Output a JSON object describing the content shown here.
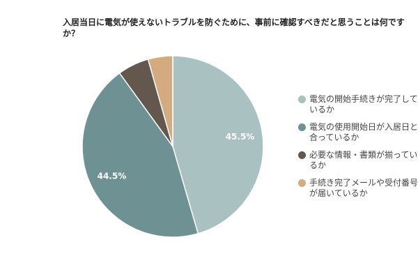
{
  "chart_data": {
    "type": "pie",
    "title": "入居当日に電気が使えないトラブルを防ぐために、事前に確認すべきだと思うことは何ですか？",
    "categories": [
      "電気の開始手続きが完了しているか",
      "電気の使用開始日が入居日と合っているか",
      "必要な情報・書類が揃っているか",
      "手続き完了メールや受付番号が届いているか"
    ],
    "values": [
      45.5,
      44.5,
      5.6,
      4.4
    ],
    "value_labels": [
      "45.5%",
      "44.5%",
      null,
      null
    ],
    "colors": [
      "#a9c1c1",
      "#6e9194",
      "#64574e",
      "#d4aa80"
    ],
    "legend": "right"
  }
}
